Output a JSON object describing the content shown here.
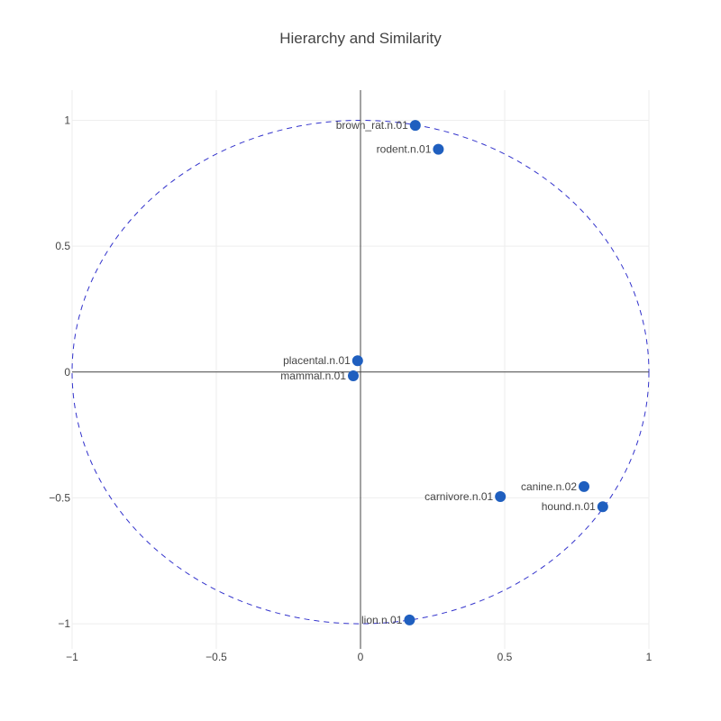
{
  "chart_data": {
    "type": "scatter",
    "title": "Hierarchy and Similarity",
    "xlabel": "",
    "ylabel": "",
    "xlim": [
      -1,
      1
    ],
    "ylim": [
      -1.1,
      1.12
    ],
    "grid": true,
    "unit_circle": true,
    "x_ticks": [
      -1,
      -0.5,
      0,
      0.5,
      1
    ],
    "x_tick_labels": [
      "−1",
      "−0.5",
      "0",
      "0.5",
      "1"
    ],
    "y_ticks": [
      1,
      0.5,
      0,
      -0.5,
      -1
    ],
    "y_tick_labels": [
      "1",
      "0.5",
      "0",
      "−0.5",
      "−1"
    ],
    "points": [
      {
        "label": "brown_rat.n.01",
        "x": 0.19,
        "y": 0.98
      },
      {
        "label": "rodent.n.01",
        "x": 0.27,
        "y": 0.885
      },
      {
        "label": "placental.n.01",
        "x": -0.01,
        "y": 0.045
      },
      {
        "label": "mammal.n.01",
        "x": -0.025,
        "y": -0.015
      },
      {
        "label": "canine.n.02",
        "x": 0.775,
        "y": -0.455
      },
      {
        "label": "carnivore.n.01",
        "x": 0.485,
        "y": -0.495
      },
      {
        "label": "hound.n.01",
        "x": 0.84,
        "y": -0.535
      },
      {
        "label": "lion.n.01",
        "x": 0.17,
        "y": -0.985
      }
    ],
    "colors": {
      "marker": "#1f5fbf",
      "circle": "#3333cc",
      "axis": "#444444",
      "grid": "#eeeeee"
    }
  }
}
